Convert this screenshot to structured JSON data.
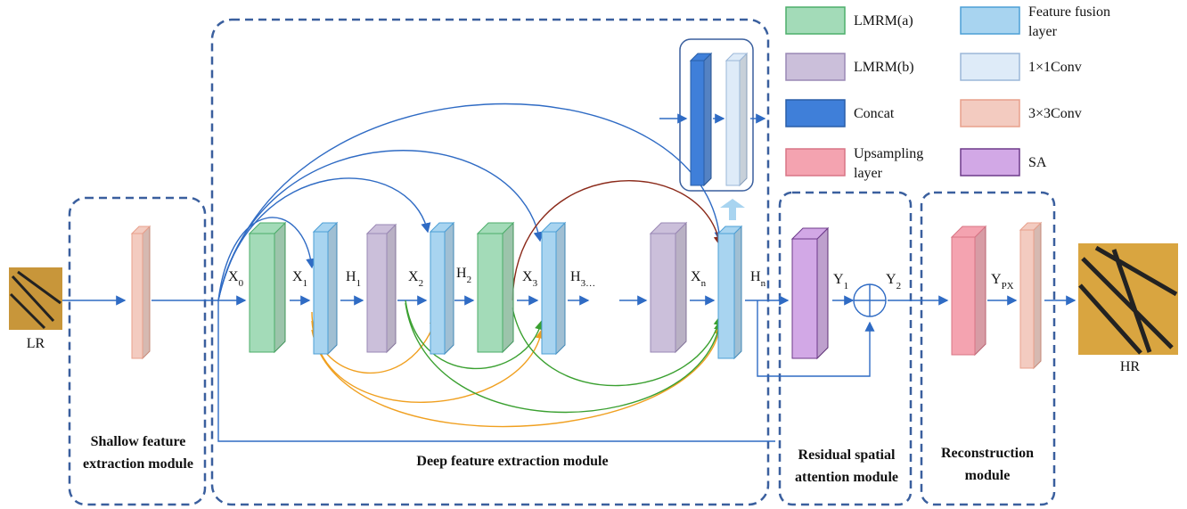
{
  "input": {
    "label": "LR"
  },
  "output": {
    "label": "HR"
  },
  "features": [
    {
      "base": "X",
      "sub": "0"
    },
    {
      "base": "X",
      "sub": "1"
    },
    {
      "base": "H",
      "sub": "1"
    },
    {
      "base": "X",
      "sub": "2"
    },
    {
      "base": "H",
      "sub": "2"
    },
    {
      "base": "X",
      "sub": "3"
    },
    {
      "base": "H",
      "sub": "3…"
    },
    {
      "base": "X",
      "sub": "n"
    },
    {
      "base": "H",
      "sub": "n"
    },
    {
      "base": "Y",
      "sub": "1"
    },
    {
      "base": "Y",
      "sub": "2"
    },
    {
      "base": "Y",
      "sub": "PX"
    }
  ],
  "modules": [
    {
      "lines": [
        "Shallow feature",
        "extraction module"
      ]
    },
    {
      "lines": [
        "Deep feature extraction module"
      ]
    },
    {
      "lines": [
        "Residual spatial",
        "attention module"
      ]
    },
    {
      "lines": [
        "Reconstruction",
        "module"
      ]
    }
  ],
  "legend": [
    {
      "lines": [
        "LMRM(a)"
      ]
    },
    {
      "lines": [
        "LMRM(b)"
      ]
    },
    {
      "lines": [
        "Concat"
      ]
    },
    {
      "lines": [
        "Upsampling",
        "layer"
      ]
    },
    {
      "lines": [
        "Feature fusion",
        "layer"
      ]
    },
    {
      "lines": [
        "1×1Conv"
      ]
    },
    {
      "lines": [
        "3×3Conv"
      ]
    },
    {
      "lines": [
        "SA"
      ]
    }
  ]
}
